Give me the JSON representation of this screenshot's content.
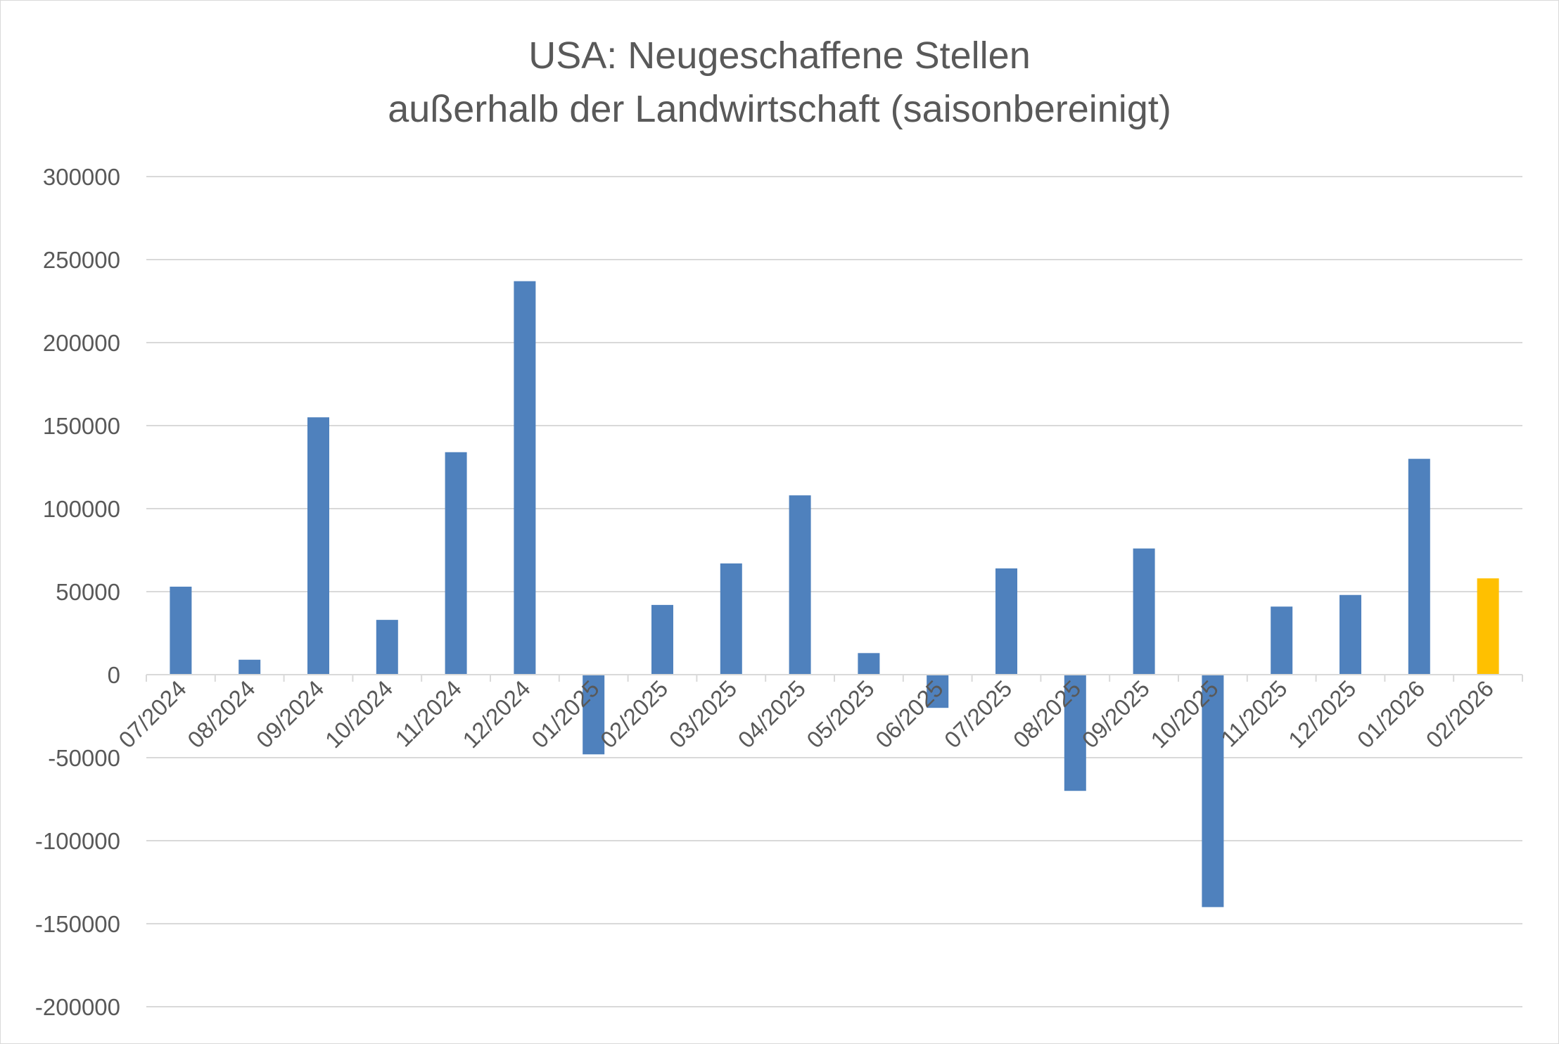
{
  "chart_data": {
    "type": "bar",
    "title": "USA: Neugeschaffene Stellen",
    "subtitle": "außerhalb der Landwirtschaft (saisonbereinigt)",
    "xlabel": "",
    "ylabel": "",
    "ylim": [
      -200000,
      300000
    ],
    "yticks": [
      "300000",
      "250000",
      "200000",
      "150000",
      "100000",
      "50000",
      "0",
      "-50000",
      "-100000",
      "-150000",
      "-200000"
    ],
    "grid": true,
    "legend": "none",
    "categories": [
      "07/2024",
      "08/2024",
      "09/2024",
      "10/2024",
      "11/2024",
      "12/2024",
      "01/2025",
      "02/2025",
      "03/2025",
      "04/2025",
      "05/2025",
      "06/2025",
      "07/2025",
      "08/2025",
      "09/2025",
      "10/2025",
      "11/2025",
      "12/2025",
      "01/2026",
      "02/2026"
    ],
    "values": [
      53000,
      9000,
      155000,
      33000,
      134000,
      237000,
      -48000,
      42000,
      67000,
      108000,
      13000,
      -20000,
      64000,
      -70000,
      76000,
      -140000,
      41000,
      48000,
      130000,
      58000
    ],
    "colors": {
      "default": "#4f81bd",
      "highlight": "#ffc000",
      "highlight_index": 19,
      "grid": "#d9d9d9",
      "text": "#595959"
    }
  }
}
